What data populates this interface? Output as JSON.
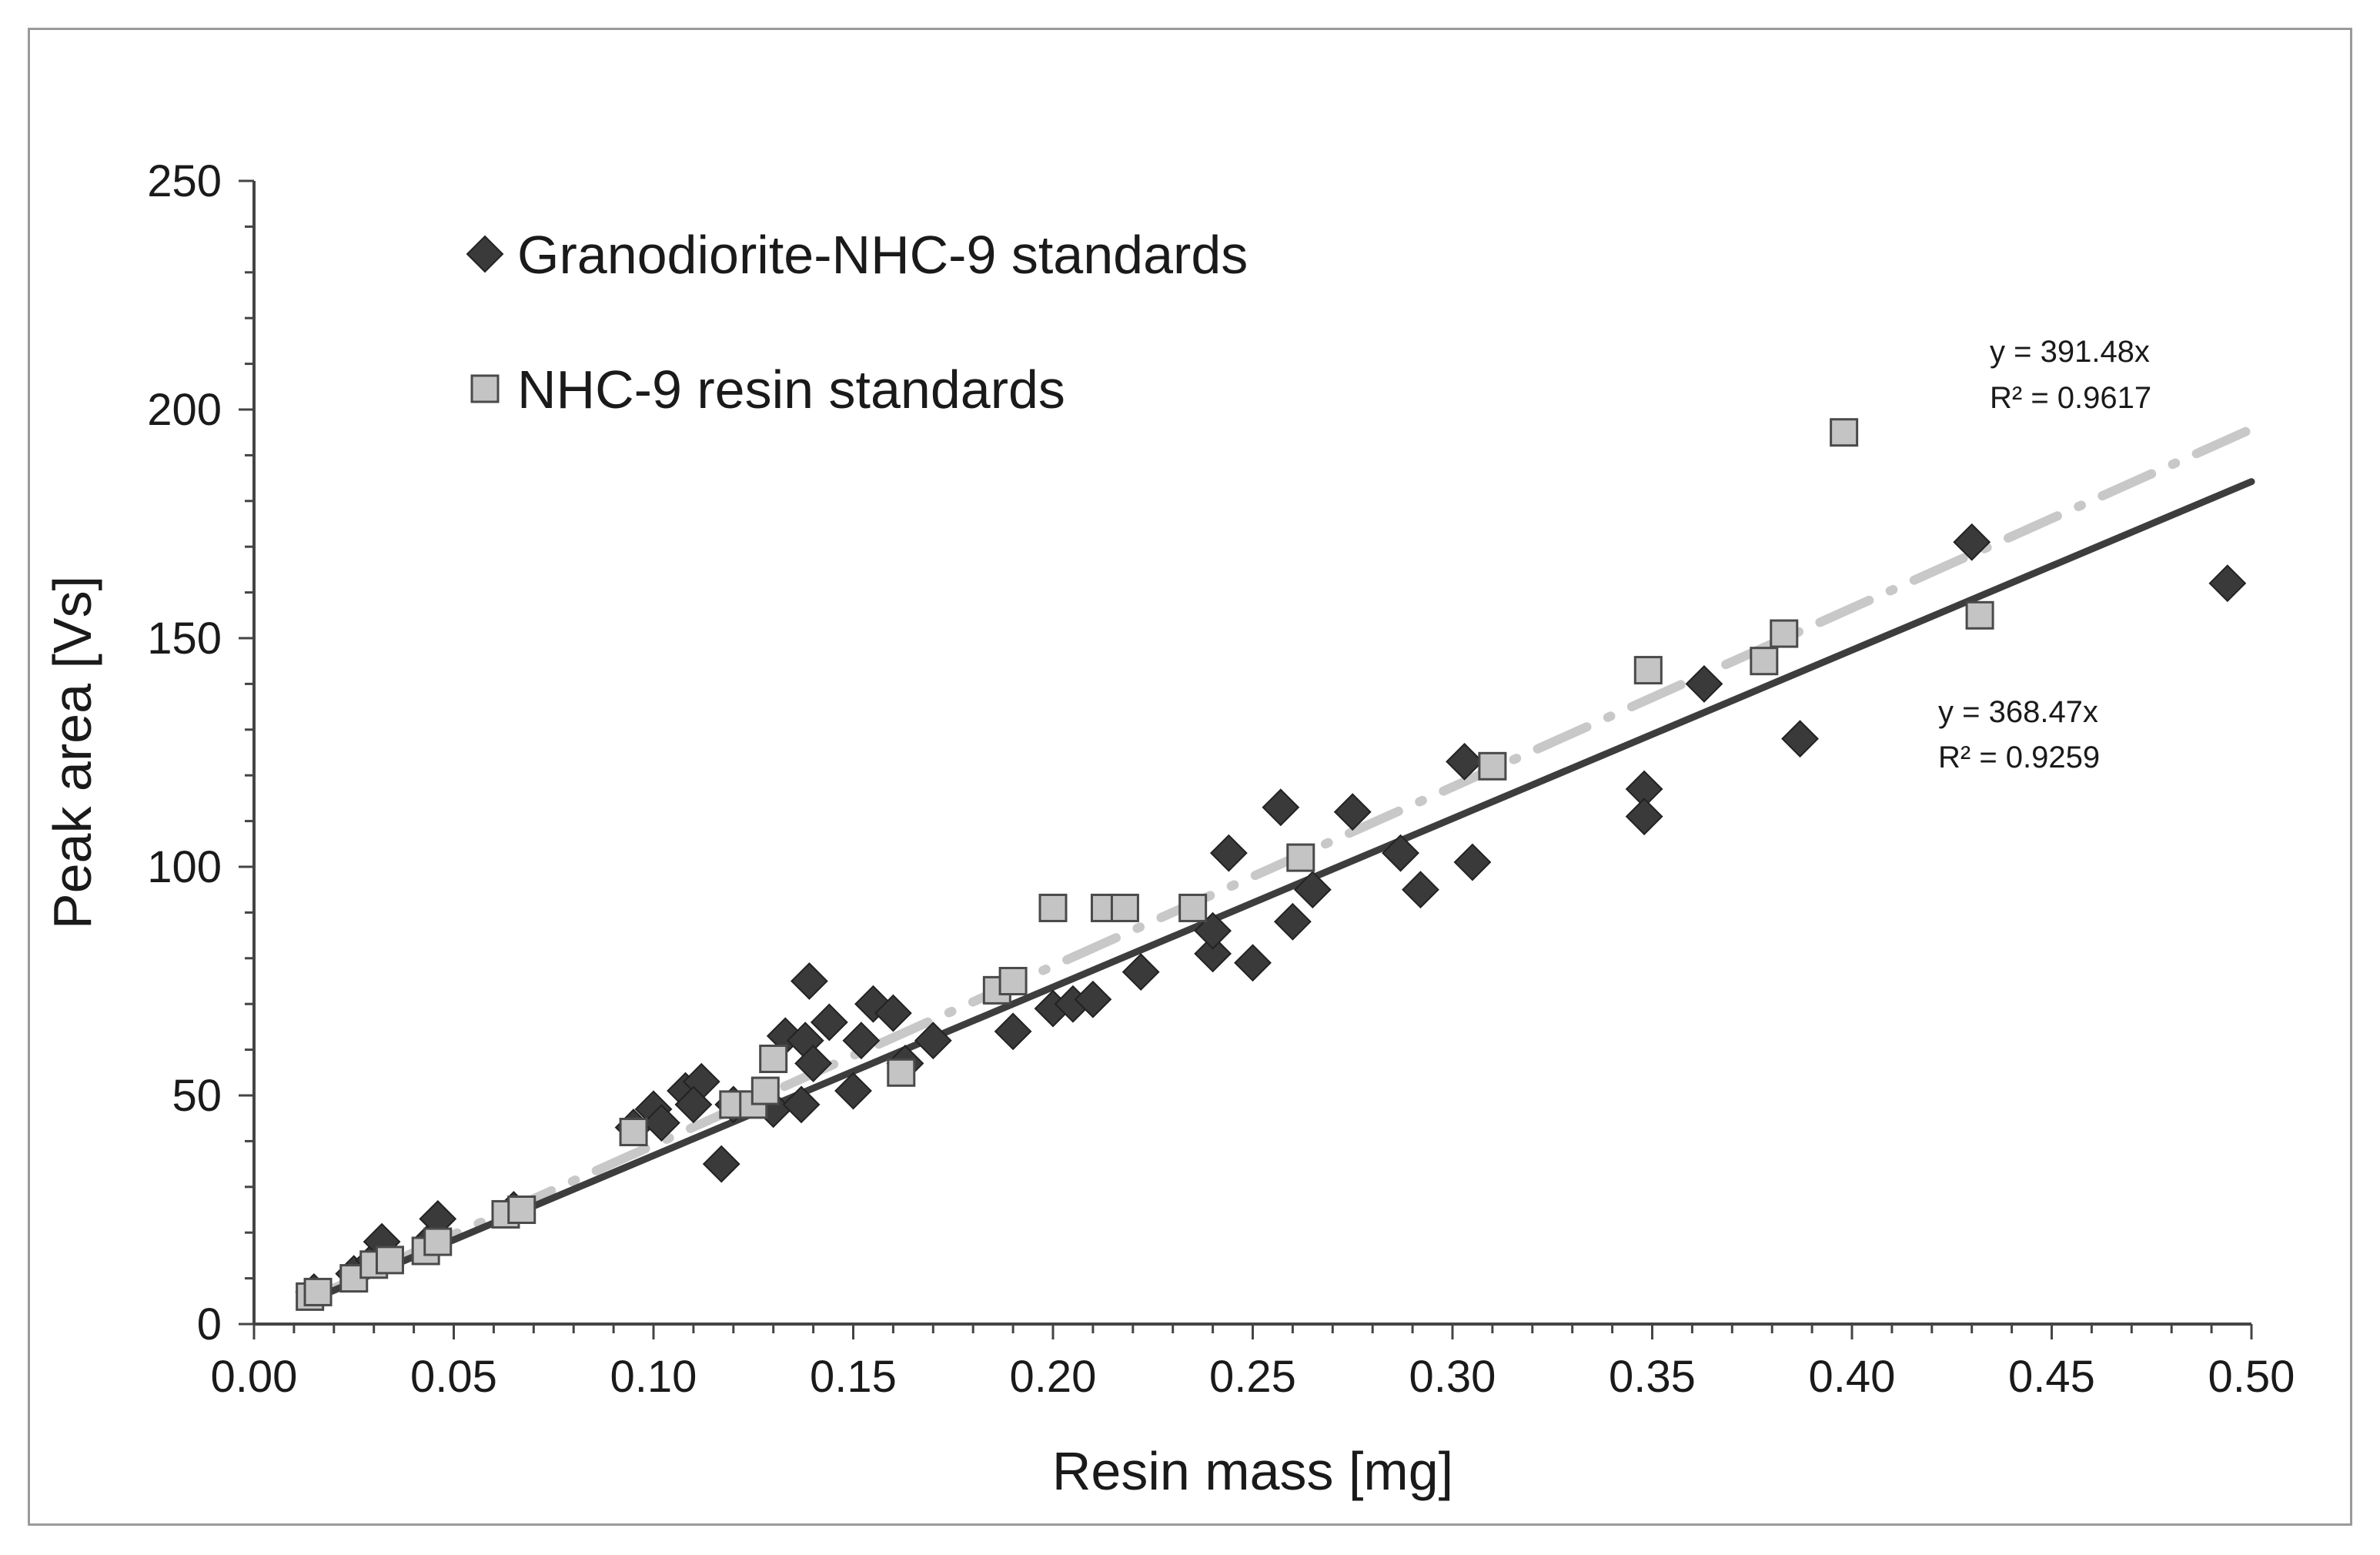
{
  "chart_data": {
    "type": "scatter",
    "title": "",
    "xlabel": "Resin mass [mg]",
    "ylabel": "Peak area [Vs]",
    "xlim": [
      0.0,
      0.5
    ],
    "ylim": [
      0,
      250
    ],
    "x_ticks": [
      "0.00",
      "0.05",
      "0.10",
      "0.15",
      "0.20",
      "0.25",
      "0.30",
      "0.35",
      "0.40",
      "0.45",
      "0.50"
    ],
    "y_ticks": [
      "0",
      "50",
      "100",
      "150",
      "200",
      "250"
    ],
    "x_tick_values": [
      0.0,
      0.05,
      0.1,
      0.15,
      0.2,
      0.25,
      0.3,
      0.35,
      0.4,
      0.45,
      0.5
    ],
    "y_tick_values": [
      0,
      50,
      100,
      150,
      200,
      250
    ],
    "grid": false,
    "legend_position": "top-left",
    "series": [
      {
        "name": "Granodiorite-NHC-9 standards",
        "marker": "diamond",
        "color": "#3a3a3a",
        "points": [
          [
            0.015,
            7
          ],
          [
            0.025,
            11
          ],
          [
            0.03,
            14
          ],
          [
            0.032,
            18
          ],
          [
            0.045,
            19
          ],
          [
            0.046,
            23
          ],
          [
            0.065,
            25
          ],
          [
            0.095,
            43
          ],
          [
            0.1,
            47
          ],
          [
            0.102,
            44
          ],
          [
            0.108,
            51
          ],
          [
            0.112,
            53
          ],
          [
            0.11,
            48
          ],
          [
            0.117,
            35
          ],
          [
            0.12,
            48
          ],
          [
            0.13,
            47
          ],
          [
            0.133,
            63
          ],
          [
            0.137,
            48
          ],
          [
            0.138,
            62
          ],
          [
            0.14,
            57
          ],
          [
            0.139,
            75
          ],
          [
            0.144,
            66
          ],
          [
            0.15,
            51
          ],
          [
            0.152,
            62
          ],
          [
            0.155,
            70
          ],
          [
            0.16,
            68
          ],
          [
            0.163,
            57
          ],
          [
            0.17,
            62
          ],
          [
            0.19,
            64
          ],
          [
            0.2,
            69
          ],
          [
            0.205,
            70
          ],
          [
            0.21,
            71
          ],
          [
            0.222,
            77
          ],
          [
            0.24,
            81
          ],
          [
            0.24,
            86
          ],
          [
            0.244,
            103
          ],
          [
            0.25,
            79
          ],
          [
            0.257,
            113
          ],
          [
            0.26,
            88
          ],
          [
            0.265,
            95
          ],
          [
            0.275,
            112
          ],
          [
            0.287,
            103
          ],
          [
            0.292,
            95
          ],
          [
            0.303,
            123
          ],
          [
            0.305,
            101
          ],
          [
            0.348,
            117
          ],
          [
            0.348,
            111
          ],
          [
            0.363,
            140
          ],
          [
            0.387,
            128
          ],
          [
            0.43,
            171
          ],
          [
            0.494,
            162
          ]
        ]
      },
      {
        "name": "NHC-9 resin standards",
        "marker": "square",
        "color": "#c4c4c4",
        "points": [
          [
            0.014,
            6
          ],
          [
            0.016,
            7
          ],
          [
            0.025,
            10
          ],
          [
            0.03,
            13
          ],
          [
            0.034,
            14
          ],
          [
            0.043,
            16
          ],
          [
            0.046,
            18
          ],
          [
            0.063,
            24
          ],
          [
            0.067,
            25
          ],
          [
            0.095,
            42
          ],
          [
            0.12,
            48
          ],
          [
            0.125,
            48
          ],
          [
            0.13,
            58
          ],
          [
            0.128,
            51
          ],
          [
            0.162,
            55
          ],
          [
            0.186,
            73
          ],
          [
            0.19,
            75
          ],
          [
            0.2,
            91
          ],
          [
            0.213,
            91
          ],
          [
            0.218,
            91
          ],
          [
            0.235,
            91
          ],
          [
            0.262,
            102
          ],
          [
            0.31,
            122
          ],
          [
            0.349,
            143
          ],
          [
            0.378,
            145
          ],
          [
            0.383,
            151
          ],
          [
            0.398,
            195
          ],
          [
            0.432,
            155
          ]
        ]
      }
    ],
    "trendlines": [
      {
        "series": "NHC-9 resin standards",
        "slope": 391.48,
        "equation": "y = 391.48x",
        "r2": "R² = 0.9617",
        "style": "dash-dot",
        "color": "#c8c8c8"
      },
      {
        "series": "Granodiorite-NHC-9 standards",
        "slope": 368.47,
        "equation": "y = 368.47x",
        "r2": "R² = 0.9259",
        "style": "solid",
        "color": "#3d3d3d"
      }
    ]
  }
}
